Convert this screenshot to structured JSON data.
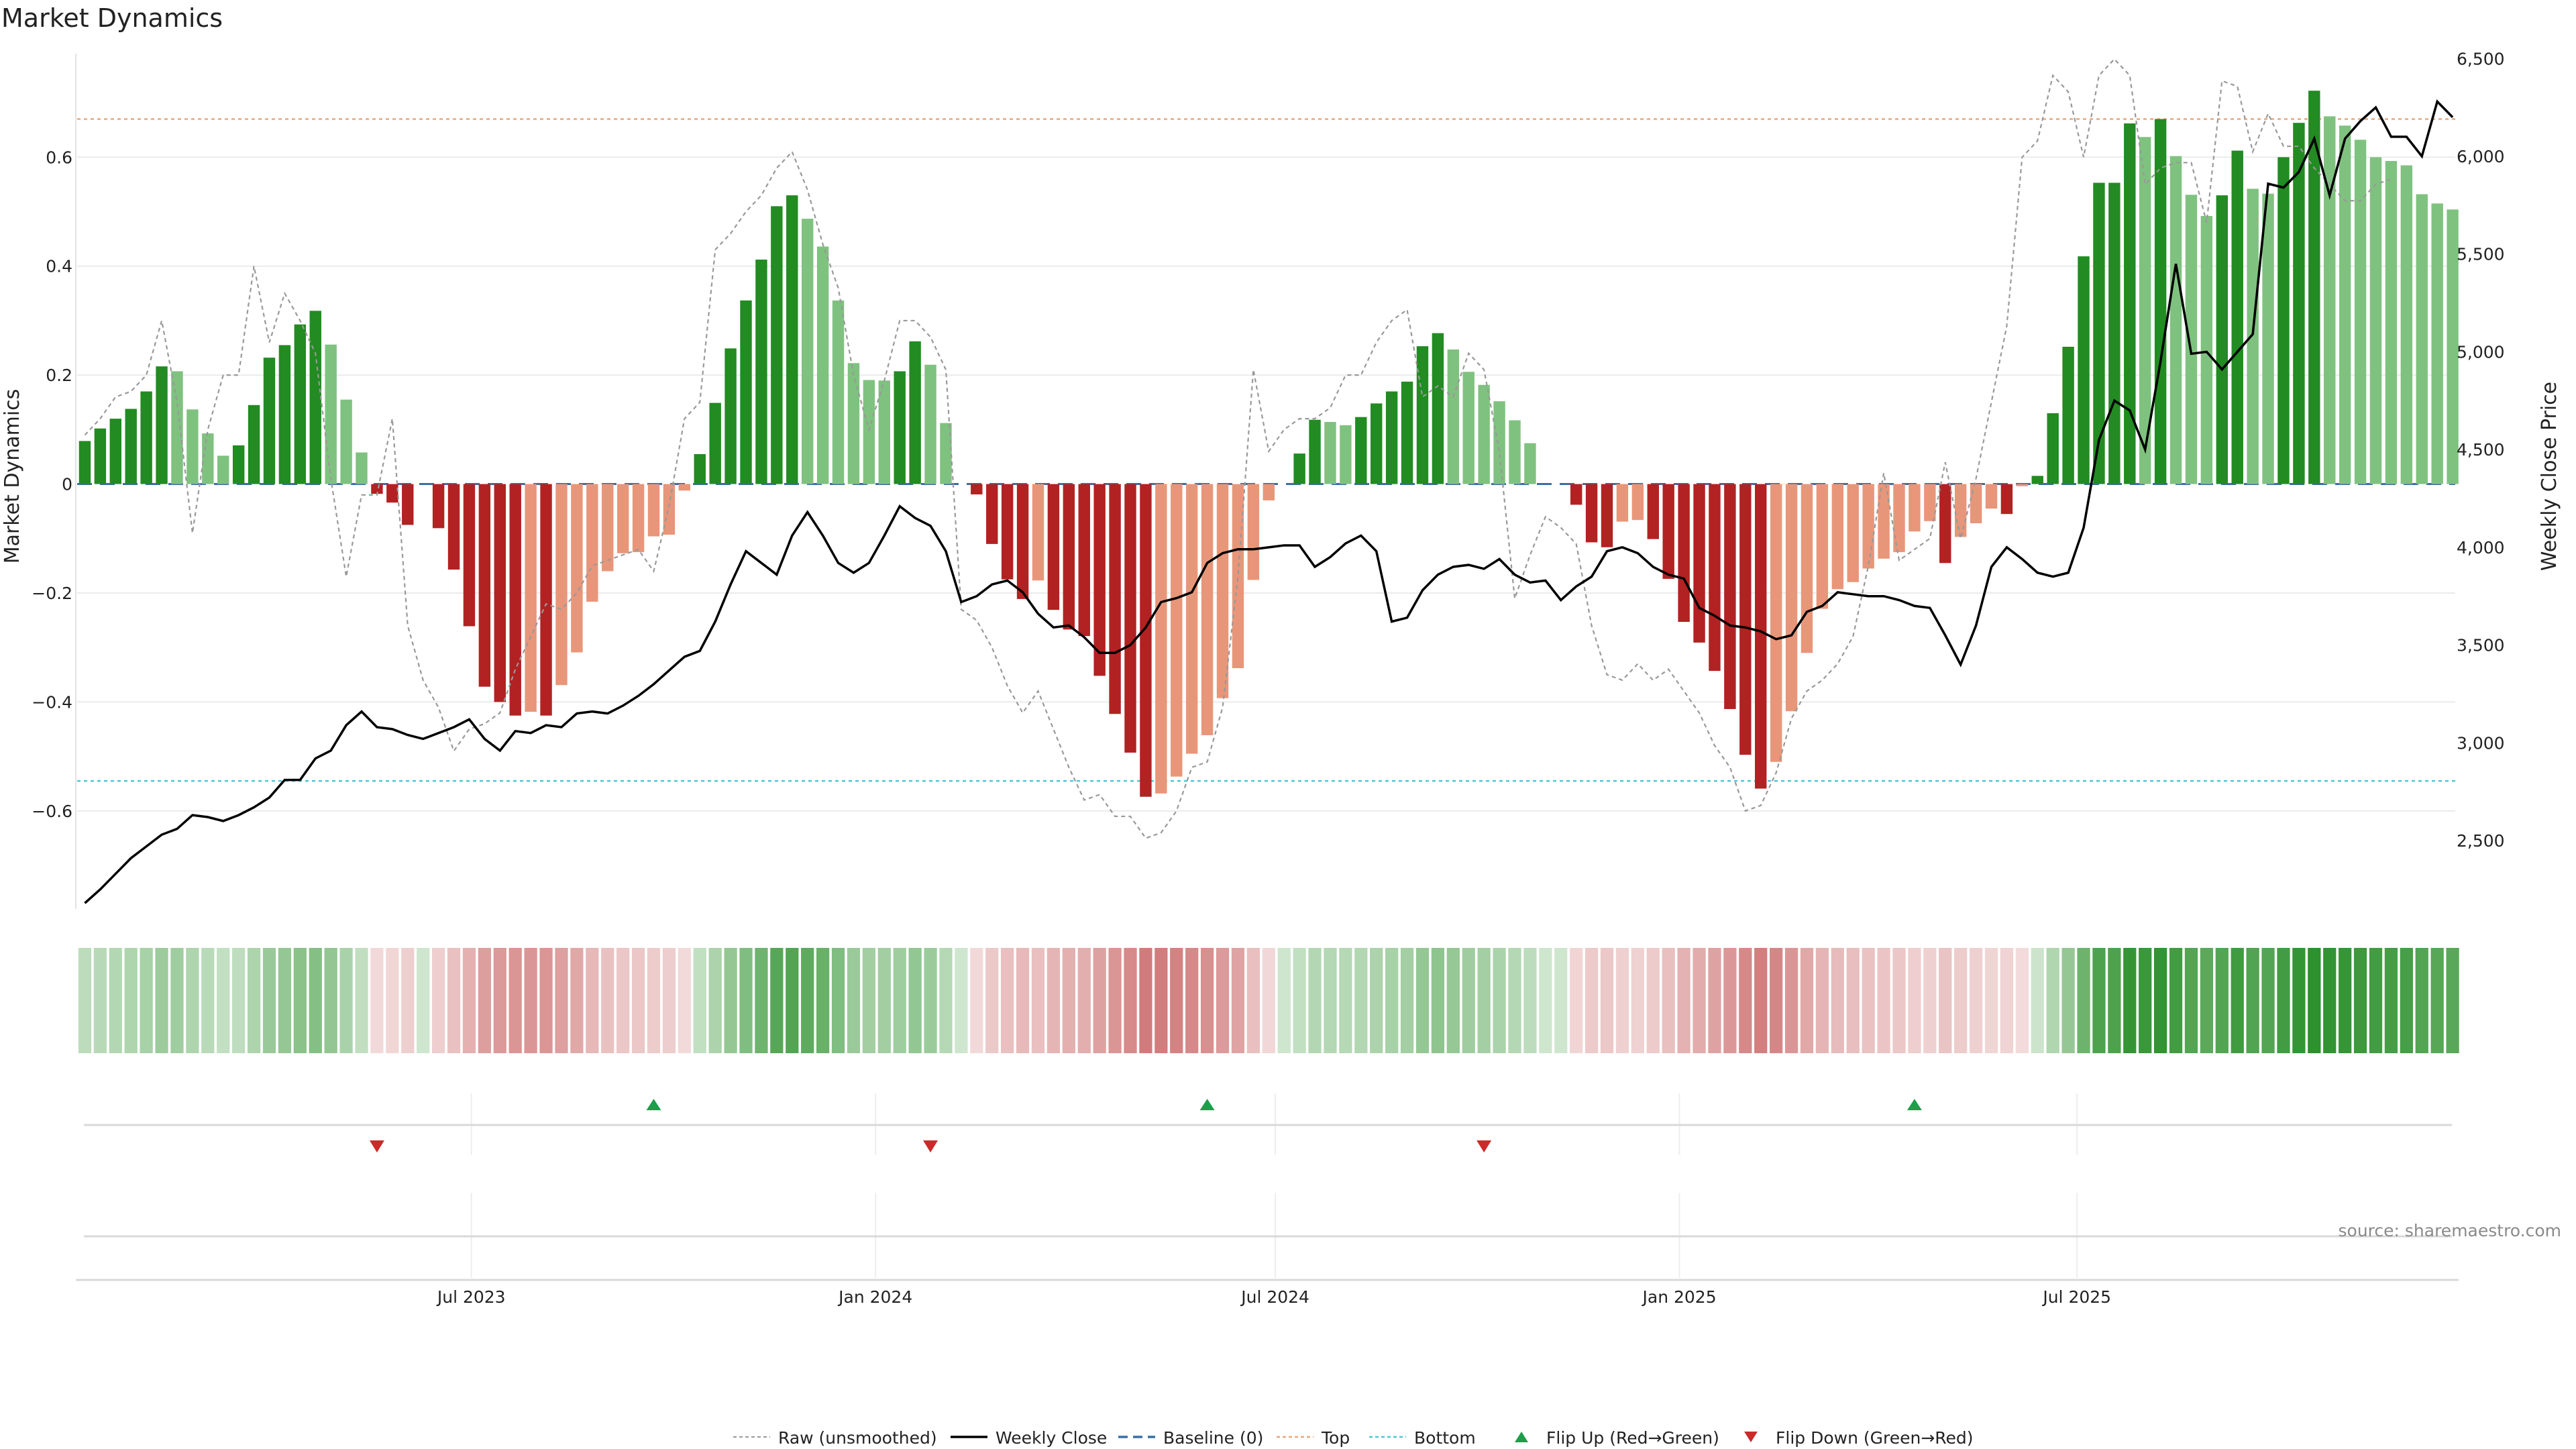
{
  "chart_data": {
    "type": "bar",
    "title": "Market Dynamics",
    "ylabel": "Market Dynamics",
    "y2label": "Weekly Close Price",
    "source": "source: sharemaestro.com",
    "y_ticks": [
      "0.6",
      "0.4",
      "0.2",
      "0",
      "−0.2",
      "−0.4",
      "−0.6"
    ],
    "y2_ticks": [
      "6,500",
      "6,000",
      "5,500",
      "5,000",
      "4,500",
      "4,000",
      "3,500",
      "3,000",
      "2,500"
    ],
    "x_ticks": [
      "Jul 2023",
      "Jan 2024",
      "Jul 2024",
      "Jan 2025",
      "Jul 2025"
    ],
    "ylim": [
      -0.78,
      0.79
    ],
    "y2lim": [
      2150,
      6525
    ],
    "top_line": 0.67,
    "bottom_line": -0.545,
    "start_date": "2023-01-06",
    "series": [
      {
        "name": "Market Dynamics",
        "values": [
          0.079,
          0.102,
          0.12,
          0.138,
          0.17,
          0.216,
          0.207,
          0.137,
          0.093,
          0.052,
          0.071,
          0.145,
          0.232,
          0.255,
          0.293,
          0.318,
          0.256,
          0.155,
          0.058,
          -0.018,
          -0.034,
          -0.075,
          0.0,
          -0.081,
          -0.157,
          -0.261,
          -0.372,
          -0.4,
          -0.425,
          -0.418,
          -0.425,
          -0.369,
          -0.309,
          -0.216,
          -0.16,
          -0.127,
          -0.125,
          -0.096,
          -0.093,
          -0.012,
          0.055,
          0.149,
          0.249,
          0.337,
          0.412,
          0.51,
          0.53,
          0.487,
          0.436,
          0.337,
          0.222,
          0.191,
          0.19,
          0.207,
          0.262,
          0.219,
          0.112,
          0.0,
          -0.019,
          -0.11,
          -0.175,
          -0.211,
          -0.177,
          -0.231,
          -0.267,
          -0.279,
          -0.352,
          -0.422,
          -0.493,
          -0.574,
          -0.568,
          -0.537,
          -0.495,
          -0.461,
          -0.393,
          -0.338,
          -0.176,
          -0.03,
          0.0,
          0.056,
          0.118,
          0.114,
          0.108,
          0.123,
          0.148,
          0.17,
          0.188,
          0.253,
          0.277,
          0.247,
          0.206,
          0.182,
          0.152,
          0.117,
          0.075,
          0.0,
          0.0,
          -0.038,
          -0.107,
          -0.116,
          -0.069,
          -0.066,
          -0.101,
          -0.174,
          -0.253,
          -0.291,
          -0.343,
          -0.413,
          -0.497,
          -0.559,
          -0.51,
          -0.417,
          -0.31,
          -0.229,
          -0.193,
          -0.18,
          -0.155,
          -0.137,
          -0.125,
          -0.087,
          -0.068,
          -0.145,
          -0.097,
          -0.072,
          -0.045,
          -0.055,
          -0.004,
          0.015,
          0.13,
          0.252,
          0.418,
          0.553,
          0.553,
          0.662,
          0.637,
          0.67,
          0.602,
          0.531,
          0.492,
          0.53,
          0.612,
          0.542,
          0.533,
          0.6,
          0.663,
          0.722,
          0.675,
          0.658,
          0.632,
          0.6,
          0.593,
          0.585,
          0.532,
          0.515,
          0.504
        ]
      },
      {
        "name": "Raw (unsmoothed)",
        "values": [
          0.09,
          0.12,
          0.16,
          0.17,
          0.2,
          0.3,
          0.15,
          -0.09,
          0.1,
          0.2,
          0.2,
          0.4,
          0.26,
          0.35,
          0.3,
          0.24,
          0.01,
          -0.17,
          -0.02,
          -0.02,
          0.12,
          -0.26,
          -0.36,
          -0.41,
          -0.49,
          -0.45,
          -0.44,
          -0.42,
          -0.34,
          -0.28,
          -0.22,
          -0.23,
          -0.2,
          -0.15,
          -0.14,
          -0.13,
          -0.12,
          -0.16,
          -0.04,
          0.12,
          0.15,
          0.43,
          0.46,
          0.5,
          0.53,
          0.58,
          0.61,
          0.54,
          0.44,
          0.36,
          0.2,
          0.1,
          0.19,
          0.3,
          0.3,
          0.27,
          0.21,
          -0.23,
          -0.25,
          -0.3,
          -0.37,
          -0.42,
          -0.38,
          -0.45,
          -0.52,
          -0.58,
          -0.57,
          -0.61,
          -0.61,
          -0.65,
          -0.64,
          -0.6,
          -0.52,
          -0.51,
          -0.41,
          -0.17,
          0.21,
          0.06,
          0.1,
          0.12,
          0.12,
          0.14,
          0.2,
          0.2,
          0.26,
          0.3,
          0.32,
          0.16,
          0.18,
          0.16,
          0.24,
          0.21,
          0.06,
          -0.21,
          -0.13,
          -0.06,
          -0.08,
          -0.11,
          -0.26,
          -0.35,
          -0.36,
          -0.33,
          -0.36,
          -0.34,
          -0.38,
          -0.42,
          -0.48,
          -0.52,
          -0.6,
          -0.59,
          -0.53,
          -0.43,
          -0.38,
          -0.36,
          -0.33,
          -0.28,
          -0.15,
          0.02,
          -0.14,
          -0.12,
          -0.1,
          0.04,
          -0.1,
          0.01,
          0.15,
          0.29,
          0.6,
          0.63,
          0.75,
          0.72,
          0.6,
          0.75,
          0.78,
          0.75,
          0.55,
          0.58,
          0.59,
          0.59,
          0.48,
          0.74,
          0.73,
          0.61,
          0.68,
          0.62,
          0.62,
          0.58,
          0.55,
          0.52,
          0.52,
          0.55,
          0.56
        ]
      },
      {
        "name": "Weekly Close",
        "values": [
          2180,
          2250,
          2330,
          2410,
          2470,
          2530,
          2560,
          2630,
          2620,
          2600,
          2630,
          2670,
          2720,
          2810,
          2810,
          2920,
          2960,
          3090,
          3160,
          3080,
          3070,
          3040,
          3020,
          3050,
          3080,
          3120,
          3020,
          2960,
          3060,
          3050,
          3090,
          3080,
          3150,
          3160,
          3150,
          3190,
          3240,
          3300,
          3370,
          3440,
          3470,
          3620,
          3810,
          3980,
          3920,
          3860,
          4060,
          4180,
          4060,
          3920,
          3870,
          3920,
          4060,
          4210,
          4150,
          4110,
          3980,
          3720,
          3750,
          3810,
          3830,
          3770,
          3660,
          3590,
          3600,
          3540,
          3460,
          3460,
          3500,
          3590,
          3720,
          3740,
          3770,
          3920,
          3970,
          3990,
          3990,
          4000,
          4010,
          4010,
          3900,
          3950,
          4020,
          4060,
          3980,
          3620,
          3640,
          3780,
          3860,
          3900,
          3910,
          3890,
          3940,
          3860,
          3820,
          3830,
          3730,
          3800,
          3850,
          3980,
          4000,
          3970,
          3900,
          3860,
          3840,
          3690,
          3650,
          3600,
          3590,
          3570,
          3530,
          3550,
          3670,
          3700,
          3770,
          3760,
          3750,
          3750,
          3730,
          3700,
          3690,
          3550,
          3400,
          3600,
          3900,
          4000,
          3940,
          3870,
          3850,
          3870,
          4100,
          4550,
          4750,
          4700,
          4500,
          4950,
          5450,
          4990,
          5000,
          4910,
          5000,
          5090,
          5860,
          5840,
          5920,
          6090,
          5800,
          6090,
          6180,
          6250,
          6100,
          6100,
          6000,
          6280,
          6200
        ]
      }
    ],
    "flip_up_weeks": [
      37,
      73,
      119
    ],
    "flip_down_weeks": [
      19,
      55,
      91
    ],
    "legend": [
      "Raw (unsmoothed)",
      "Weekly Close",
      "Baseline (0)",
      "Top",
      "Bottom",
      "Flip Up (Red→Green)",
      "Flip Down (Green→Red)"
    ]
  }
}
